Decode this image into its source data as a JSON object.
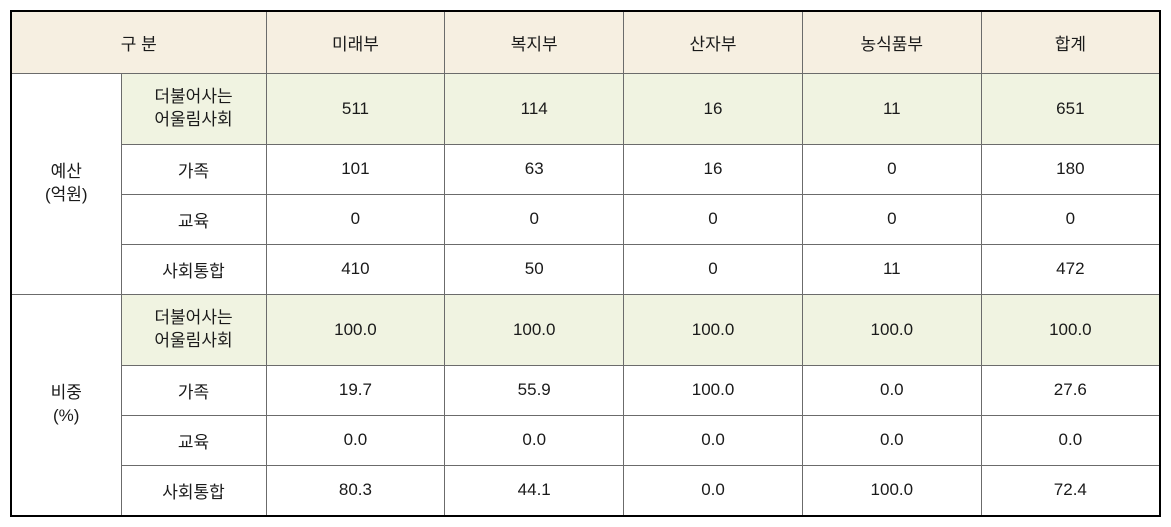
{
  "table": {
    "type": "table",
    "colors": {
      "header_bg": "#f6efe1",
      "highlight_bg": "#f0f3e1",
      "border": "#6b6b6b",
      "outer_border": "#000000",
      "text": "#1a1a1a",
      "background": "#ffffff"
    },
    "font": {
      "family": "Malgun Gothic",
      "size_pt": 13
    },
    "header": {
      "category_label": "구 분",
      "columns": [
        "미래부",
        "복지부",
        "산자부",
        "농식품부",
        "합계"
      ]
    },
    "groups": [
      {
        "label_line1": "예산",
        "label_line2": "(억원)",
        "rows": [
          {
            "highlight": true,
            "label_line1": "더불어사는",
            "label_line2": "어울림사회",
            "values": [
              "511",
              "114",
              "16",
              "11",
              "651"
            ]
          },
          {
            "highlight": false,
            "label": "가족",
            "values": [
              "101",
              "63",
              "16",
              "0",
              "180"
            ]
          },
          {
            "highlight": false,
            "label": "교육",
            "values": [
              "0",
              "0",
              "0",
              "0",
              "0"
            ]
          },
          {
            "highlight": false,
            "label": "사회통합",
            "values": [
              "410",
              "50",
              "0",
              "11",
              "472"
            ]
          }
        ]
      },
      {
        "label_line1": "비중",
        "label_line2": "(%)",
        "rows": [
          {
            "highlight": true,
            "label_line1": "더불어사는",
            "label_line2": "어울림사회",
            "values": [
              "100.0",
              "100.0",
              "100.0",
              "100.0",
              "100.0"
            ]
          },
          {
            "highlight": false,
            "label": "가족",
            "values": [
              "19.7",
              "55.9",
              "100.0",
              "0.0",
              "27.6"
            ]
          },
          {
            "highlight": false,
            "label": "교육",
            "values": [
              "0.0",
              "0.0",
              "0.0",
              "0.0",
              "0.0"
            ]
          },
          {
            "highlight": false,
            "label": "사회통합",
            "values": [
              "80.3",
              "44.1",
              "0.0",
              "100.0",
              "72.4"
            ]
          }
        ]
      }
    ]
  }
}
